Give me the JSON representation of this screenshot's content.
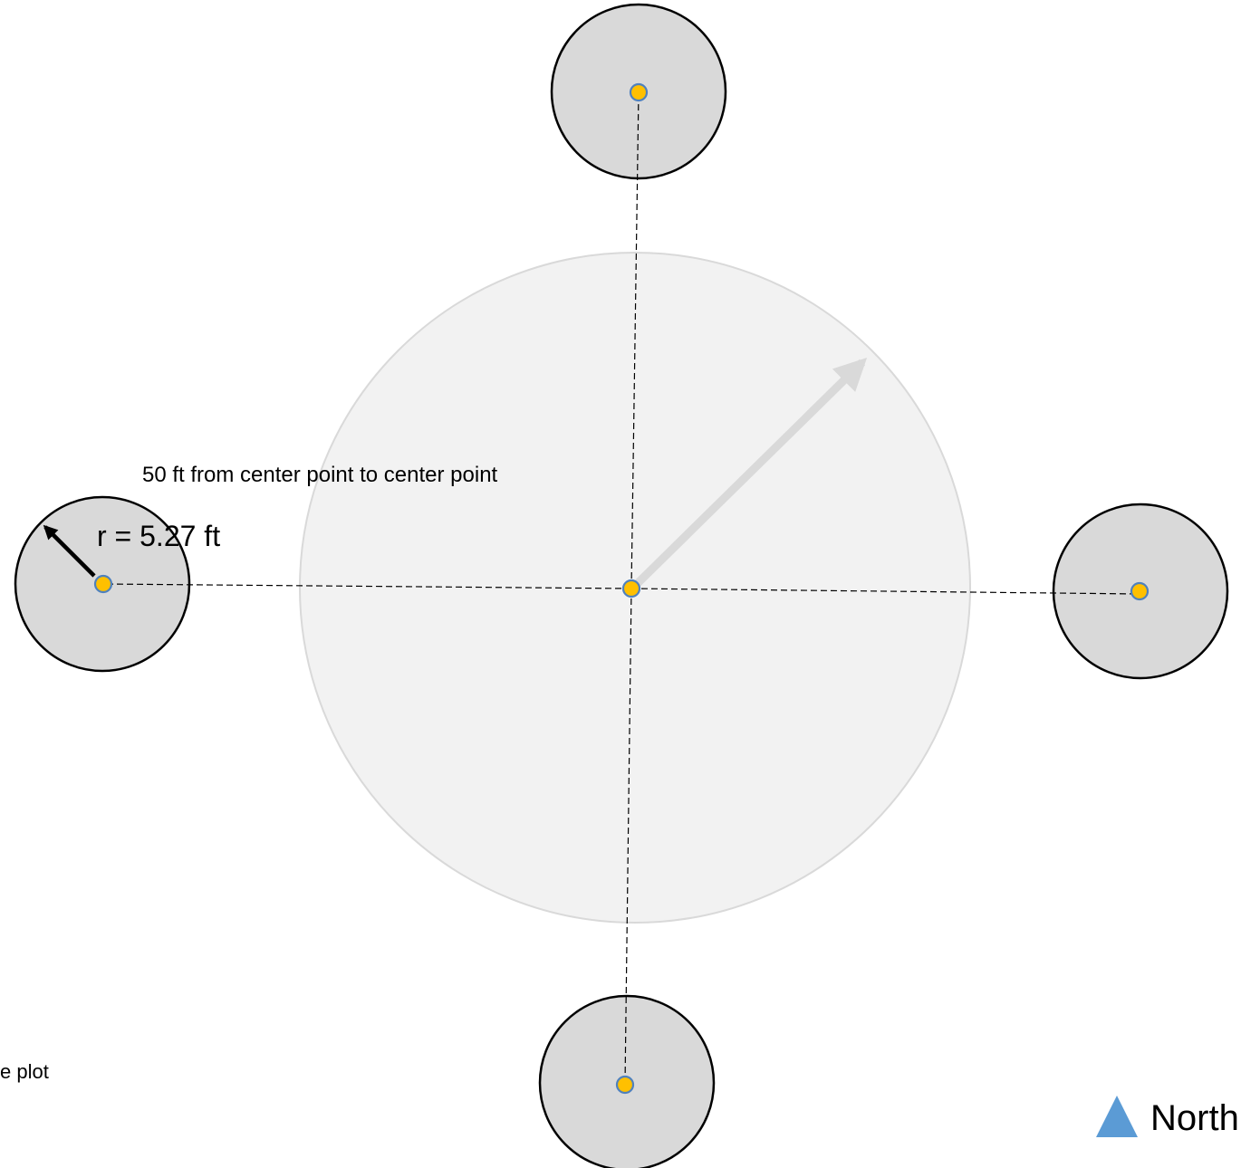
{
  "labels": {
    "distance": "50 ft from center point to center point",
    "radius": "r = 5.27 ft",
    "partial": "e plot",
    "north": "North"
  },
  "colors": {
    "large_plot_fill": "#f2f2f2",
    "large_plot_stroke": "#d9d9d9",
    "subplot_fill": "#d9d9d9",
    "subplot_stroke": "#000000",
    "center_point_fill": "#ffc000",
    "center_point_stroke": "#4f81bd",
    "large_arrow": "#d9d9d9",
    "north_triangle": "#5b9bd5"
  },
  "icons": {
    "north": "north-triangle-icon"
  }
}
